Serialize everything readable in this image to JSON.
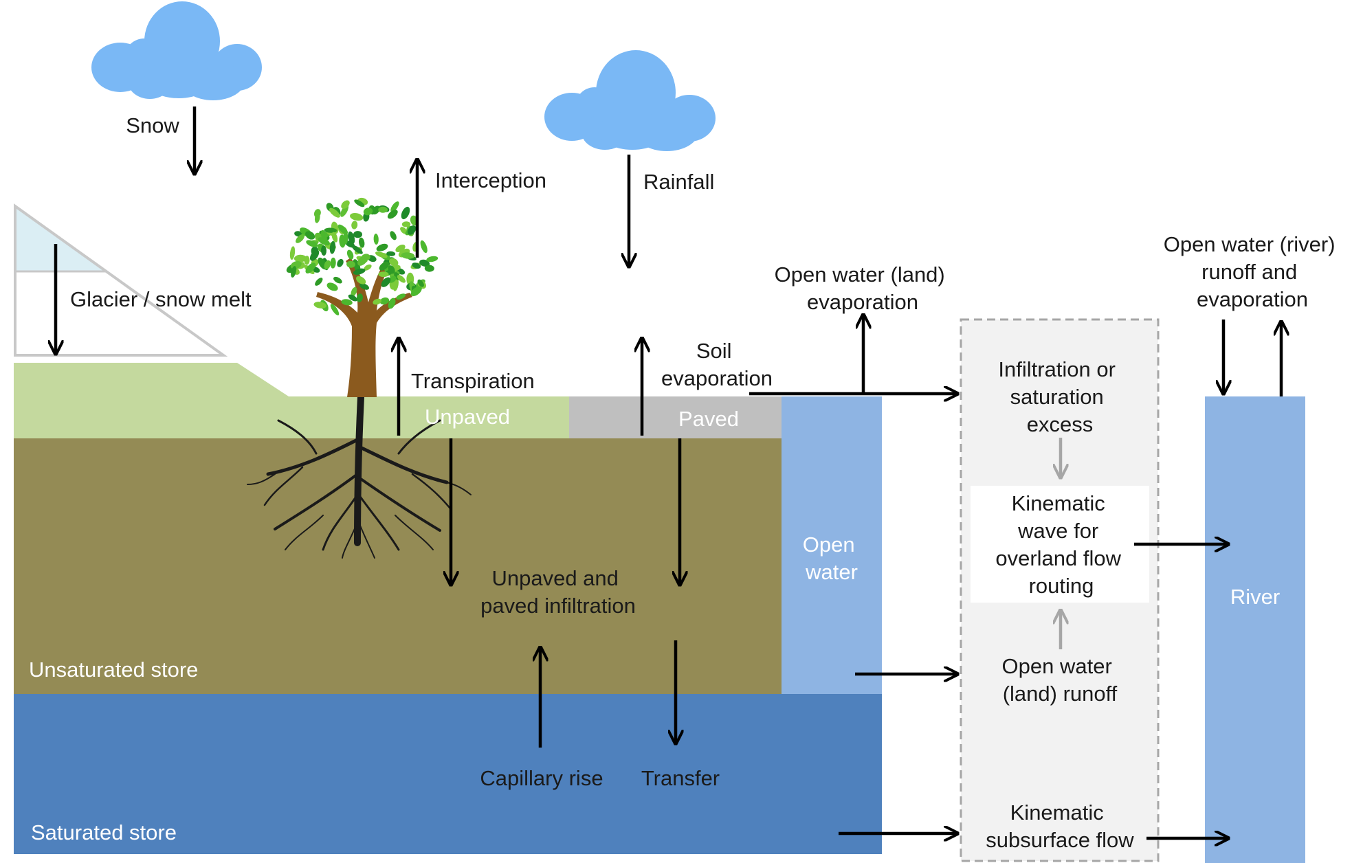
{
  "colors": {
    "cloud": "#7ab8f5",
    "glacier": "#dbeef4",
    "unpaved_ground": "#c4d99e",
    "paved_ground": "#bfbfbf",
    "unsaturated_store": "#948b55",
    "saturated_store": "#4f81bd",
    "open_water": "#8eb4e3",
    "river": "#8eb4e3",
    "routing_panel": "#f2f2f2",
    "tree_trunk": "#8b5a1e",
    "tree_leaves": "#3aa629",
    "roots": "#1a1a1a"
  },
  "labels": {
    "snow": "Snow",
    "glacier_snow_melt": "Glacier / snow melt",
    "interception": "Interception",
    "rainfall": "Rainfall",
    "transpiration": "Transpiration",
    "soil_evaporation": [
      "Soil",
      "evaporation"
    ],
    "open_water_land_evaporation": [
      "Open water (land)",
      "evaporation"
    ],
    "open_water_river": [
      "Open water (river)",
      "runoff and",
      "evaporation"
    ],
    "unpaved": "Unpaved",
    "paved": "Paved",
    "infiltration": [
      "Unpaved and",
      "paved infiltration"
    ],
    "unsaturated_store": "Unsaturated store",
    "saturated_store": "Saturated store",
    "capillary_rise": "Capillary rise",
    "transfer": "Transfer",
    "open_water": [
      "Open",
      "water"
    ],
    "river": "River",
    "infiltration_excess": [
      "Infiltration or",
      "saturation",
      "excess"
    ],
    "kinematic_wave": [
      "Kinematic",
      "wave for",
      "overland flow",
      "routing"
    ],
    "open_water_land_runoff": [
      "Open water",
      "(land) runoff"
    ],
    "kinematic_subsurface": [
      "Kinematic",
      "subsurface flow"
    ]
  },
  "icons": {
    "clouds": "cloud-icon",
    "tree": "tree-icon",
    "glacier": "glacier-icon"
  }
}
